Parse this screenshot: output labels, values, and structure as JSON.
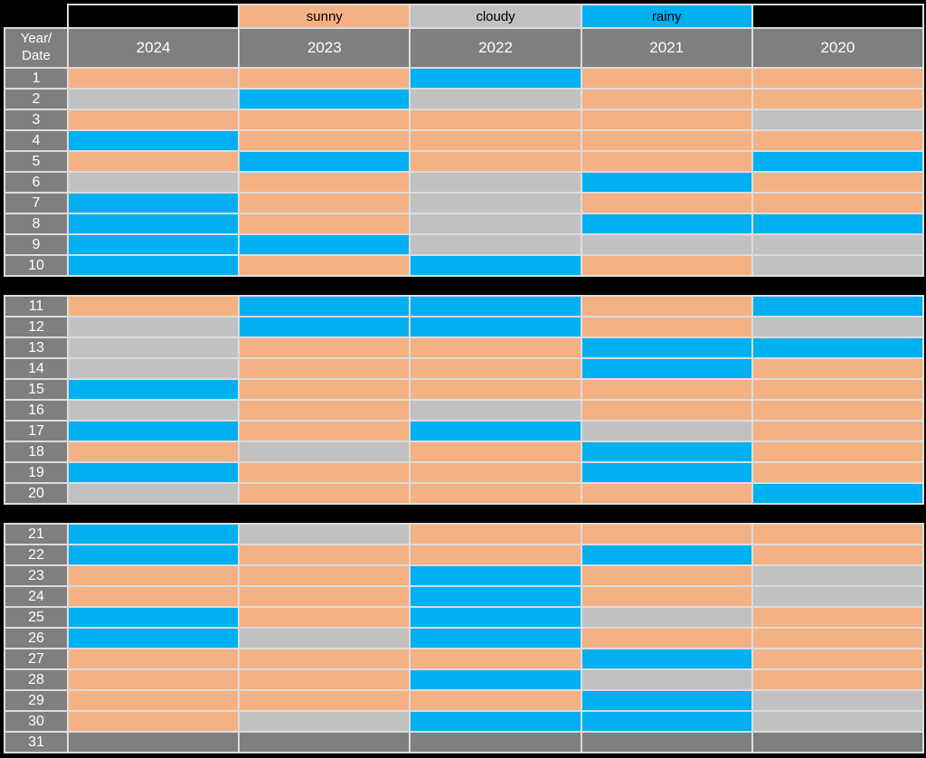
{
  "page": {
    "background": "#000000"
  },
  "legend": {
    "items": [
      {
        "label": "",
        "color": "#000000"
      },
      {
        "label": "sunny",
        "color": "#F4B183"
      },
      {
        "label": "cloudy",
        "color": "#C1C1C1"
      },
      {
        "label": "rainy",
        "color": "#00B0F0"
      },
      {
        "label": "",
        "color": "#000000"
      }
    ]
  },
  "header": {
    "corner": "Year/\nDate",
    "years": [
      "2024",
      "2023",
      "2022",
      "2021",
      "2020"
    ]
  },
  "colors": {
    "sunny": "#F4B183",
    "cloudy": "#C1C1C1",
    "rainy": "#00B0F0",
    "empty": "#7F7F7F",
    "row_label_bg": "#7F7F7F",
    "header_bg": "#7F7F7F",
    "grid_line": "#DCDCDC",
    "gap_band": "#000000",
    "text_light": "#FFFFFF",
    "text_dark": "#000000"
  },
  "chart_data": {
    "type": "heatmap",
    "title": "",
    "row_label_header": "Year/Date",
    "columns": [
      "2024",
      "2023",
      "2022",
      "2021",
      "2020"
    ],
    "dates": [
      1,
      2,
      3,
      4,
      5,
      6,
      7,
      8,
      9,
      10,
      11,
      12,
      13,
      14,
      15,
      16,
      17,
      18,
      19,
      20,
      21,
      22,
      23,
      24,
      25,
      26,
      27,
      28,
      29,
      30,
      31
    ],
    "categories": [
      "sunny",
      "cloudy",
      "rainy"
    ],
    "legend_position": "top",
    "row_groups": [
      [
        1,
        10
      ],
      [
        11,
        20
      ],
      [
        21,
        31
      ]
    ],
    "values": [
      [
        "sunny",
        "sunny",
        "rainy",
        "sunny",
        "sunny"
      ],
      [
        "cloudy",
        "rainy",
        "cloudy",
        "sunny",
        "sunny"
      ],
      [
        "sunny",
        "sunny",
        "sunny",
        "sunny",
        "cloudy"
      ],
      [
        "rainy",
        "sunny",
        "sunny",
        "sunny",
        "sunny"
      ],
      [
        "sunny",
        "rainy",
        "sunny",
        "sunny",
        "rainy"
      ],
      [
        "cloudy",
        "sunny",
        "cloudy",
        "rainy",
        "sunny"
      ],
      [
        "rainy",
        "sunny",
        "cloudy",
        "sunny",
        "sunny"
      ],
      [
        "rainy",
        "sunny",
        "cloudy",
        "rainy",
        "rainy"
      ],
      [
        "rainy",
        "rainy",
        "cloudy",
        "cloudy",
        "cloudy"
      ],
      [
        "rainy",
        "sunny",
        "rainy",
        "sunny",
        "cloudy"
      ],
      [
        "sunny",
        "rainy",
        "rainy",
        "sunny",
        "rainy"
      ],
      [
        "cloudy",
        "rainy",
        "rainy",
        "sunny",
        "cloudy"
      ],
      [
        "cloudy",
        "sunny",
        "sunny",
        "rainy",
        "rainy"
      ],
      [
        "cloudy",
        "sunny",
        "sunny",
        "rainy",
        "sunny"
      ],
      [
        "rainy",
        "sunny",
        "sunny",
        "sunny",
        "sunny"
      ],
      [
        "cloudy",
        "sunny",
        "cloudy",
        "sunny",
        "sunny"
      ],
      [
        "rainy",
        "sunny",
        "rainy",
        "cloudy",
        "sunny"
      ],
      [
        "sunny",
        "cloudy",
        "sunny",
        "rainy",
        "sunny"
      ],
      [
        "rainy",
        "sunny",
        "sunny",
        "rainy",
        "sunny"
      ],
      [
        "cloudy",
        "sunny",
        "sunny",
        "sunny",
        "rainy"
      ],
      [
        "rainy",
        "cloudy",
        "sunny",
        "sunny",
        "sunny"
      ],
      [
        "rainy",
        "sunny",
        "sunny",
        "rainy",
        "sunny"
      ],
      [
        "sunny",
        "sunny",
        "rainy",
        "sunny",
        "cloudy"
      ],
      [
        "sunny",
        "sunny",
        "rainy",
        "sunny",
        "cloudy"
      ],
      [
        "rainy",
        "sunny",
        "rainy",
        "cloudy",
        "sunny"
      ],
      [
        "rainy",
        "cloudy",
        "rainy",
        "sunny",
        "sunny"
      ],
      [
        "sunny",
        "sunny",
        "sunny",
        "rainy",
        "sunny"
      ],
      [
        "sunny",
        "sunny",
        "rainy",
        "cloudy",
        "sunny"
      ],
      [
        "sunny",
        "sunny",
        "sunny",
        "rainy",
        "cloudy"
      ],
      [
        "sunny",
        "cloudy",
        "rainy",
        "rainy",
        "cloudy"
      ],
      [
        null,
        null,
        null,
        null,
        null
      ]
    ]
  }
}
